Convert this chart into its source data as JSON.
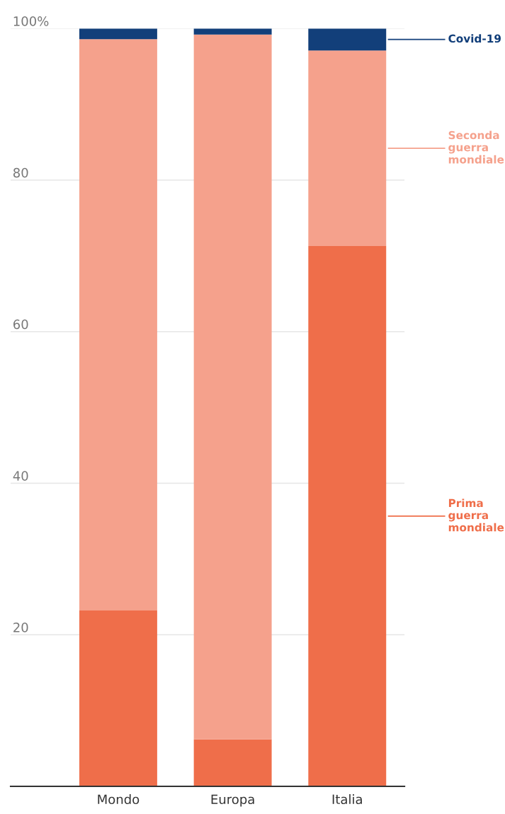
{
  "chart_data": {
    "type": "bar",
    "stacked": true,
    "categories": [
      "Mondo",
      "Europa",
      "Italia"
    ],
    "series": [
      {
        "name": "Prima guerra mondiale",
        "color": "#ef6e4a",
        "values": [
          23.2,
          6.2,
          71.3
        ]
      },
      {
        "name": "Seconda guerra mondiale",
        "color": "#f5a18c",
        "values": [
          75.4,
          93.0,
          25.8
        ]
      },
      {
        "name": "Covid-19",
        "color": "#123f7a",
        "values": [
          1.4,
          0.8,
          2.9
        ]
      }
    ],
    "ylim": [
      0,
      100
    ],
    "yticks": [
      20,
      40,
      60,
      80,
      {
        "value": 100,
        "label": "100%"
      }
    ],
    "grid": "y"
  }
}
